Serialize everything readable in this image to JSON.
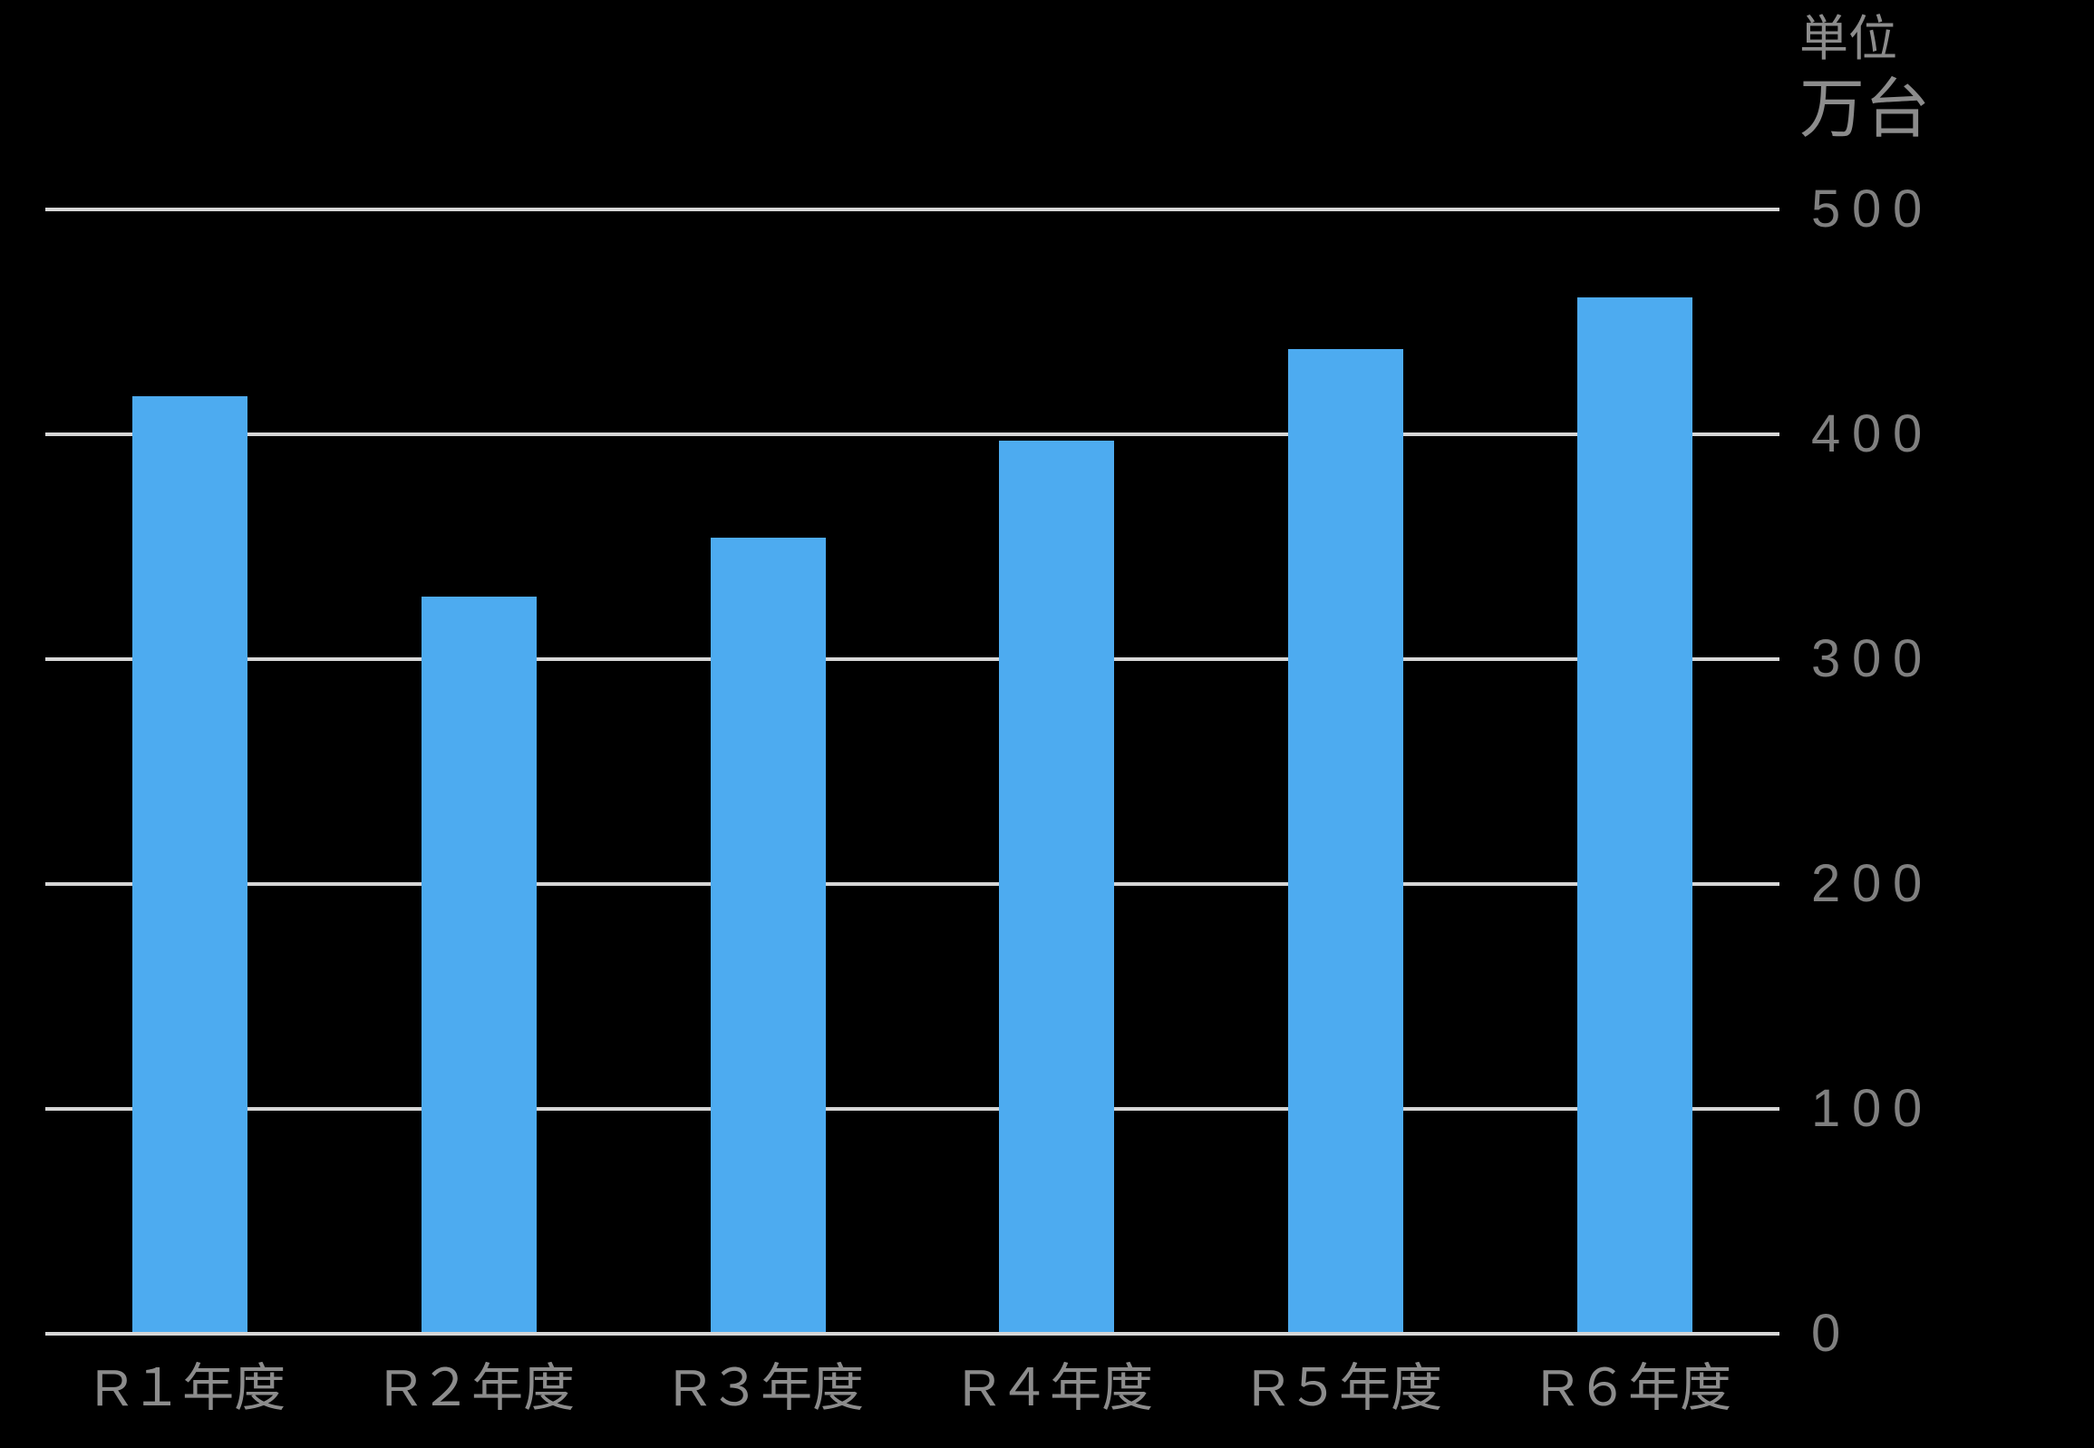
{
  "chart_data": {
    "type": "bar",
    "categories": [
      "R１年度",
      "R２年度",
      "R３年度",
      "R４年度",
      "R５年度",
      "R６年度"
    ],
    "values": [
      417,
      328,
      354,
      397,
      438,
      461
    ],
    "title": "",
    "xlabel": "",
    "ylabel": "万台",
    "unit_line1": "単位",
    "unit_line2": "万台",
    "yticks": [
      0,
      100,
      200,
      300,
      400,
      500
    ],
    "ylim": [
      0,
      500
    ],
    "grid": "horizontal gridlines every 100, y-axis labels on right side",
    "legend": "none",
    "colors": {
      "background": "#000000",
      "bar": "#4DABF0",
      "gridline": "#D6D6D6",
      "tick_text": "#7F7F7F",
      "label_text": "#8C8C8C"
    }
  }
}
